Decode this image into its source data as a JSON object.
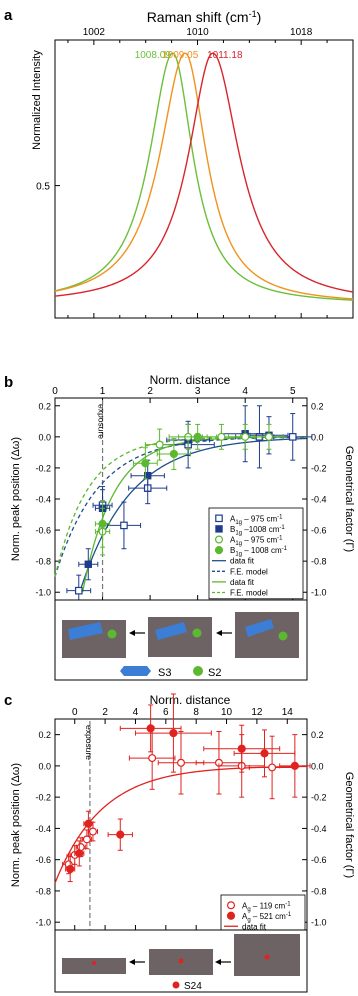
{
  "panels": {
    "a": {
      "letter": "a",
      "top_axis_title": "Raman shift (cm",
      "top_axis_title_sup": "-1",
      "top_axis_title_end": ")",
      "ylabel": "Normalized Intensity"
    },
    "b": {
      "letter": "b",
      "top_axis_title": "Norm. distance",
      "exposure_label": "exposure",
      "legend": [
        {
          "label": "A",
          "sub": "1g",
          "rest": " – 975 cm",
          "sup": "-1",
          "marker": "open-square",
          "color": "#1f3c8c"
        },
        {
          "label": "B",
          "sub": "1g",
          "rest": " –1008 cm",
          "sup": "-1",
          "marker": "filled-square",
          "color": "#1f3c8c"
        },
        {
          "label": "A",
          "sub": "1g",
          "rest": " – 975 cm",
          "sup": "-1",
          "marker": "open-circle",
          "color": "#5cb82e"
        },
        {
          "label": "B",
          "sub": "1g",
          "rest": " – 1008 cm",
          "sup": "-1",
          "marker": "filled-circle",
          "color": "#5cb82e"
        },
        {
          "label": "data fit",
          "marker": "line",
          "color": "#1f4f8c"
        },
        {
          "label": "F.E. model",
          "marker": "dash",
          "color": "#1f4f8c"
        },
        {
          "label": "data fit",
          "marker": "line",
          "color": "#5cb82e"
        },
        {
          "label": "F.E. model",
          "marker": "dash",
          "color": "#5cb82e"
        }
      ],
      "inset_labels": {
        "s3": "S3",
        "s2": "S2"
      }
    },
    "c": {
      "letter": "c",
      "top_axis_title": "Norm. distance",
      "exposure_label": "exposure",
      "legend": [
        {
          "label": "A",
          "sub": "g",
          "rest": " – 119 cm",
          "sup": "-1",
          "marker": "open-circle",
          "color": "#e0231f"
        },
        {
          "label": "A",
          "sub": "g",
          "rest": " – 521 cm",
          "sup": "-1",
          "marker": "filled-circle",
          "color": "#e0231f"
        },
        {
          "label": "data fit",
          "marker": "line",
          "color": "#e0231f"
        }
      ],
      "inset_labels": {
        "s24": "S24"
      }
    }
  },
  "y_label_left": "Norm. peak position (Δω)",
  "y_label_right": "Geometrical factor (Γ)",
  "chart_data": [
    {
      "type": "line",
      "panel": "a",
      "xlabel": "Raman shift (cm-1)",
      "ylabel": "Normalized Intensity",
      "xlim": [
        999,
        1022
      ],
      "xticks": [
        1002,
        1010,
        1018
      ],
      "ylim": [
        0,
        1.05
      ],
      "yticks": [
        0.5
      ],
      "series": [
        {
          "name": "1008.09",
          "color": "#6cbf3a",
          "peak": 1008.09,
          "hwhm_left": 2.2,
          "hwhm_right": 1.9
        },
        {
          "name": "1009.05",
          "color": "#f0921e",
          "peak": 1009.05,
          "hwhm_left": 2.4,
          "hwhm_right": 2.0
        },
        {
          "name": "1011.18",
          "color": "#d8252b",
          "peak": 1011.18,
          "hwhm_left": 2.3,
          "hwhm_right": 2.5
        }
      ],
      "peak_labels": [
        "1008.09",
        "1009.05",
        "1011.18"
      ]
    },
    {
      "type": "scatter",
      "panel": "b",
      "xlabel": "Norm. distance",
      "ylabel": "Norm. peak position (Δω)",
      "ylabel_right": "Geometrical factor (Γ)",
      "xlim": [
        0,
        5.3
      ],
      "xticks": [
        0,
        1,
        2,
        3,
        4,
        5
      ],
      "ylim": [
        -1.05,
        0.25
      ],
      "yticks": [
        0.2,
        0.0,
        -0.2,
        -0.4,
        -0.6,
        -0.8,
        -1.0
      ],
      "yticklabels": [
        "0.2",
        "0.0",
        "-0.2",
        "-0.4",
        "-0.6",
        "-0.8",
        "-1.0"
      ],
      "exposure_x": 1,
      "series": [
        {
          "name": "A1g – 975 cm-1",
          "marker": "open-square",
          "color": "#1f3c8c",
          "x": [
            0.5,
            1.0,
            1.45,
            1.95,
            2.8,
            4.3,
            5.0
          ],
          "y": [
            -0.99,
            -0.44,
            -0.57,
            -0.33,
            -0.05,
            0.0,
            0.0
          ],
          "xerr": [
            0.25,
            0.2,
            0.35,
            0.4,
            0.55,
            0.5,
            0.4
          ],
          "yerr": [
            0.1,
            0.12,
            0.15,
            0.1,
            0.15,
            0.2,
            0.15
          ]
        },
        {
          "name": "B1g –1008 cm-1",
          "marker": "filled-square",
          "color": "#1f3c8c",
          "x": [
            0.7,
            1.0,
            1.95,
            2.8,
            4.0,
            4.5
          ],
          "y": [
            -0.82,
            -0.46,
            -0.25,
            -0.02,
            0.02,
            0.01
          ],
          "xerr": [
            0.2,
            0.15,
            0.35,
            0.45,
            0.5,
            0.4
          ],
          "yerr": [
            0.1,
            0.12,
            0.1,
            0.1,
            0.18,
            0.12
          ]
        },
        {
          "name": "A1g – 975 cm-1",
          "marker": "open-circle",
          "color": "#5cb82e",
          "x": [
            1.0,
            2.2,
            2.8,
            3.5,
            4.0,
            4.5
          ],
          "y": [
            -0.61,
            -0.05,
            0.0,
            0.0,
            0.0,
            0.0
          ],
          "xerr": [
            0.15,
            0.3,
            0.4,
            0.4,
            0.35,
            0.3
          ],
          "yerr": [
            0.15,
            0.1,
            0.08,
            0.08,
            0.08,
            0.08
          ]
        },
        {
          "name": "B1g – 1008 cm-1",
          "marker": "filled-circle",
          "color": "#5cb82e",
          "x": [
            1.0,
            1.9,
            2.5,
            3.0
          ],
          "y": [
            -0.56,
            -0.17,
            -0.11,
            0.0
          ],
          "xerr": [
            0.15,
            0.25,
            0.35,
            0.4
          ],
          "yerr": [
            0.15,
            0.1,
            0.1,
            0.08
          ]
        }
      ],
      "fits": [
        {
          "name": "data fit",
          "color": "#1f4f8c",
          "style": "solid",
          "x0": 0.52,
          "a": -1.0,
          "tau": 1.05
        },
        {
          "name": "F.E. model",
          "color": "#1f4f8c",
          "style": "dashed",
          "x0": 0.0,
          "a": -0.9,
          "tau": 0.9
        },
        {
          "name": "data fit",
          "color": "#5cb82e",
          "style": "solid",
          "x0": 0.58,
          "a": -1.0,
          "tau": 0.65
        },
        {
          "name": "F.E. model",
          "color": "#5cb82e",
          "style": "dashed",
          "x0": 0.0,
          "a": -0.9,
          "tau": 0.7
        }
      ]
    },
    {
      "type": "scatter",
      "panel": "c",
      "xlabel": "Norm. distance",
      "ylabel": "Norm. peak position (Δω)",
      "ylabel_right": "Geometrical factor (Γ)",
      "xlim": [
        -1.3,
        15.3
      ],
      "xticks": [
        0,
        2,
        4,
        6,
        8,
        10,
        12,
        14
      ],
      "ylim": [
        -1.05,
        0.3
      ],
      "yticks": [
        0.2,
        0.0,
        -0.2,
        -0.4,
        -0.6,
        -0.8,
        -1.0
      ],
      "yticklabels": [
        "0.2",
        "0.0",
        "-0.2",
        "-0.4",
        "-0.6",
        "-0.8",
        "-1.0"
      ],
      "exposure_x": 1,
      "series": [
        {
          "name": "Ag – 119 cm-1",
          "marker": "open-circle",
          "color": "#e0231f",
          "x": [
            -0.4,
            0.0,
            0.4,
            0.8,
            1.2,
            5.1,
            7.0,
            9.5,
            11.0,
            13.0
          ],
          "y": [
            -0.63,
            -0.57,
            -0.52,
            -0.47,
            -0.42,
            0.05,
            0.02,
            0.02,
            0.0,
            -0.01
          ],
          "xerr": [
            0.4,
            0.3,
            0.3,
            0.3,
            0.3,
            1.5,
            1.5,
            1.5,
            1.5,
            1.5
          ],
          "yerr": [
            0.06,
            0.06,
            0.06,
            0.06,
            0.06,
            0.2,
            0.2,
            0.2,
            0.2,
            0.2
          ]
        },
        {
          "name": "Ag – 521 cm-1",
          "marker": "filled-circle",
          "color": "#e0231f",
          "x": [
            -0.3,
            0.3,
            0.9,
            3.0,
            5.0,
            6.5,
            11.0,
            12.5,
            14.5
          ],
          "y": [
            -0.66,
            -0.56,
            -0.37,
            -0.44,
            0.24,
            0.21,
            0.11,
            0.08,
            0.0
          ],
          "xerr": [
            0.3,
            0.3,
            0.3,
            0.8,
            2.0,
            2.5,
            2.5,
            2.0,
            1.0
          ],
          "yerr": [
            0.08,
            0.08,
            0.08,
            0.1,
            0.15,
            0.25,
            0.15,
            0.15,
            0.2
          ]
        }
      ],
      "fits": [
        {
          "name": "data fit",
          "color": "#e0231f",
          "style": "solid",
          "x0": -1.3,
          "a": -0.75,
          "tau": 3.1
        }
      ]
    }
  ]
}
